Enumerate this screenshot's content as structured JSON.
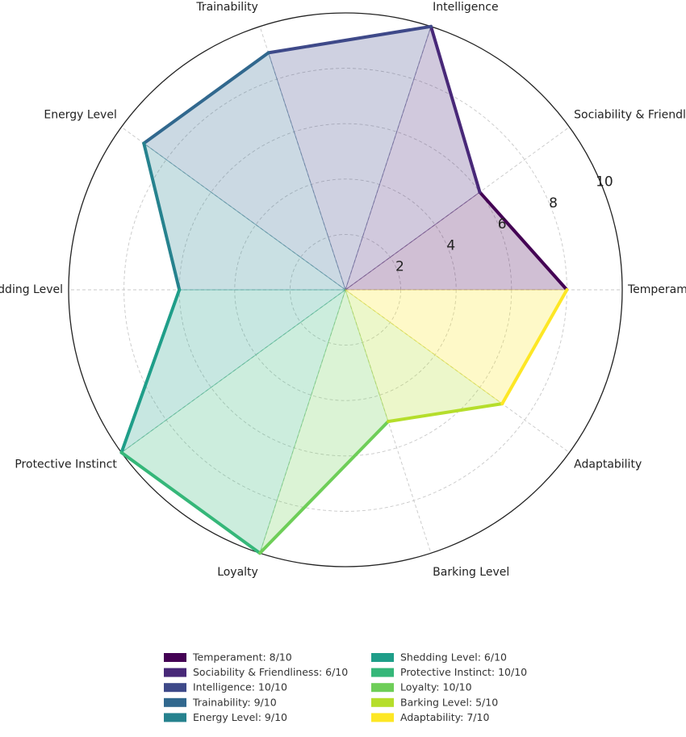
{
  "chart_data": {
    "type": "radar",
    "title": "",
    "categories": [
      "Temperament",
      "Sociability & Friendliness",
      "Intelligence",
      "Trainability",
      "Energy Level",
      "Shedding Level",
      "Protective Instinct",
      "Loyalty",
      "Barking Level",
      "Adaptability"
    ],
    "values": [
      8,
      6,
      10,
      9,
      9,
      6,
      10,
      10,
      5,
      7
    ],
    "rlim": [
      0,
      10
    ],
    "rticks": [
      2,
      4,
      6,
      8,
      10
    ],
    "grid": true,
    "legend_position": "bottom",
    "legend_entries": [
      "Temperament: 8/10",
      "Sociability & Friendliness: 6/10",
      "Intelligence: 10/10",
      "Trainability: 9/10",
      "Energy Level: 9/10",
      "Shedding Level: 6/10",
      "Protective Instinct: 10/10",
      "Loyalty: 10/10",
      "Barking Level: 5/10",
      "Adaptability: 7/10"
    ],
    "colors": [
      "#440154",
      "#482878",
      "#3e4989",
      "#31688e",
      "#26828e",
      "#1f9e89",
      "#35b779",
      "#6ece58",
      "#b5de2b",
      "#fde725"
    ]
  }
}
